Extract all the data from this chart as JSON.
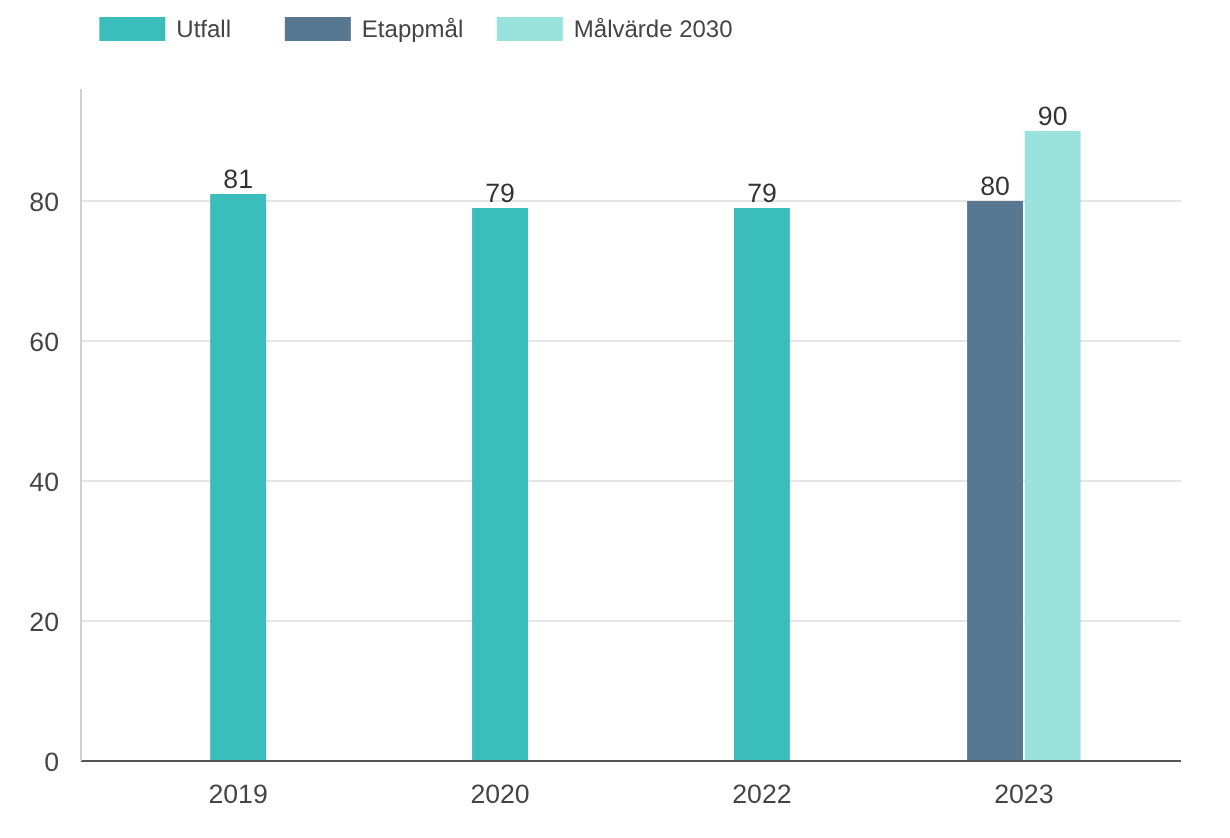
{
  "chart_data": {
    "type": "bar",
    "categories": [
      "2019",
      "2020",
      "2022",
      "2023"
    ],
    "series": [
      {
        "name": "Utfall",
        "color": "#3bbdbc",
        "values": [
          81,
          79,
          79,
          null
        ]
      },
      {
        "name": "Etappmål",
        "color": "#587791",
        "values": [
          null,
          null,
          null,
          80
        ]
      },
      {
        "name": "Målvärde 2030",
        "color": "#99e3dc",
        "values": [
          null,
          null,
          null,
          90
        ]
      }
    ],
    "ylim": [
      0,
      96
    ],
    "yticks": [
      0,
      20,
      40,
      60,
      80
    ],
    "grid": "y",
    "legend": "top left",
    "data_labels": true
  }
}
